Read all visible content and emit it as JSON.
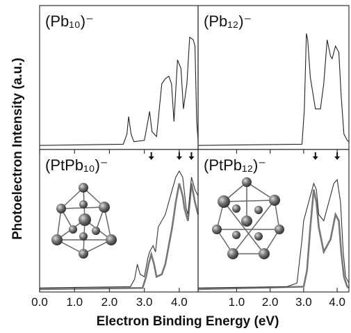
{
  "figure": {
    "xlabel": "Electron Binding Energy (eV)",
    "ylabel": "Photoelectron Intensity (a.u.)"
  },
  "chart_data": [
    {
      "type": "line",
      "title": "(Pb₁₀)⁻",
      "xlim": [
        0,
        4.54
      ],
      "ylim": [
        0,
        1
      ],
      "series": [
        {
          "color": "#222222",
          "x": [
            0,
            2.4,
            2.5,
            2.55,
            2.62,
            2.7,
            3.0,
            3.1,
            3.15,
            3.22,
            3.35,
            3.5,
            3.6,
            3.7,
            3.78,
            3.85,
            3.95,
            4.05,
            4.12,
            4.22,
            4.3,
            4.4,
            4.45,
            4.5,
            4.54
          ],
          "values": [
            0.01,
            0.02,
            0.1,
            0.24,
            0.1,
            0.04,
            0.05,
            0.2,
            0.28,
            0.12,
            0.08,
            0.5,
            0.54,
            0.56,
            0.5,
            0.2,
            0.69,
            0.62,
            0.3,
            0.5,
            0.87,
            0.85,
            0.8,
            0.2,
            0.05
          ]
        }
      ]
    },
    {
      "type": "line",
      "title": "(Pb₁₂)⁻",
      "xlim": [
        -0.15,
        4.35
      ],
      "ylim": [
        0,
        1
      ],
      "series": [
        {
          "color": "#222222",
          "x": [
            -0.15,
            2.95,
            3.02,
            3.08,
            3.12,
            3.2,
            3.35,
            3.5,
            3.6,
            3.7,
            3.8,
            3.85,
            3.95,
            4.05,
            4.12,
            4.2,
            4.3,
            4.35
          ],
          "values": [
            0.01,
            0.02,
            0.3,
            0.9,
            0.85,
            0.55,
            0.3,
            0.3,
            0.5,
            0.85,
            0.72,
            0.7,
            0.8,
            0.75,
            0.4,
            0.1,
            0.05,
            0.04
          ]
        }
      ]
    },
    {
      "type": "line",
      "title": "(PtPb₁₀)⁻",
      "xlim": [
        0,
        4.54
      ],
      "ylim": [
        0,
        1
      ],
      "xticks": [
        {
          "value": 0,
          "label": "0.0"
        },
        {
          "value": 1,
          "label": "1.0"
        },
        {
          "value": 2,
          "label": "2.0"
        },
        {
          "value": 3,
          "label": "3.0"
        },
        {
          "value": 4,
          "label": "4.0"
        }
      ],
      "arrows": [
        3.2,
        4.0,
        4.35
      ],
      "series": [
        {
          "color": "#333333",
          "x": [
            0,
            2.6,
            2.72,
            2.8,
            2.88,
            3.0,
            3.1,
            3.15,
            3.25,
            3.32,
            3.4,
            3.6,
            3.8,
            3.9,
            4.0,
            4.1,
            4.2,
            4.25,
            4.35,
            4.45,
            4.54
          ],
          "values": [
            0.01,
            0.02,
            0.08,
            0.2,
            0.12,
            0.1,
            0.25,
            0.3,
            0.35,
            0.3,
            0.5,
            0.6,
            0.8,
            0.9,
            0.95,
            0.9,
            0.65,
            0.6,
            0.9,
            0.8,
            0.75
          ]
        },
        {
          "color": "#777777",
          "x": [
            0,
            2.95,
            3.05,
            3.12,
            3.2,
            3.28,
            3.35,
            3.5,
            3.6,
            3.8,
            3.9,
            4.0,
            4.1,
            4.15,
            4.25,
            4.35,
            4.45,
            4.54
          ],
          "values": [
            0.0,
            0.01,
            0.1,
            0.2,
            0.28,
            0.2,
            0.1,
            0.12,
            0.2,
            0.5,
            0.7,
            0.85,
            0.75,
            0.65,
            0.55,
            0.85,
            0.7,
            0.6
          ]
        }
      ]
    },
    {
      "type": "line",
      "title": "(PtPb₁₂)⁻",
      "xlim": [
        -0.15,
        4.35
      ],
      "ylim": [
        0,
        1
      ],
      "xticks": [
        {
          "value": 1,
          "label": "1.0"
        },
        {
          "value": 2,
          "label": "2.0"
        },
        {
          "value": 3,
          "label": "3.0"
        },
        {
          "value": 4,
          "label": "4.0"
        }
      ],
      "arrows": [
        3.35,
        4.0
      ],
      "series": [
        {
          "color": "#333333",
          "x": [
            -0.15,
            2.5,
            2.8,
            2.95,
            3.0,
            3.15,
            3.3,
            3.38,
            3.45,
            3.6,
            3.75,
            3.9,
            4.0,
            4.1,
            4.18,
            4.25,
            4.35
          ],
          "values": [
            0.01,
            0.02,
            0.05,
            0.4,
            0.55,
            0.7,
            0.85,
            0.8,
            0.6,
            0.55,
            0.7,
            0.85,
            0.88,
            0.7,
            0.3,
            0.1,
            0.05
          ]
        },
        {
          "color": "#777777",
          "x": [
            -0.15,
            3.0,
            3.1,
            3.2,
            3.3,
            3.38,
            3.45,
            3.6,
            3.8,
            3.95,
            4.05,
            4.12,
            4.2,
            4.3,
            4.35
          ],
          "values": [
            0.0,
            0.02,
            0.15,
            0.5,
            0.8,
            0.7,
            0.5,
            0.3,
            0.4,
            0.6,
            0.55,
            0.3,
            0.1,
            0.02,
            0.01
          ]
        }
      ]
    }
  ]
}
